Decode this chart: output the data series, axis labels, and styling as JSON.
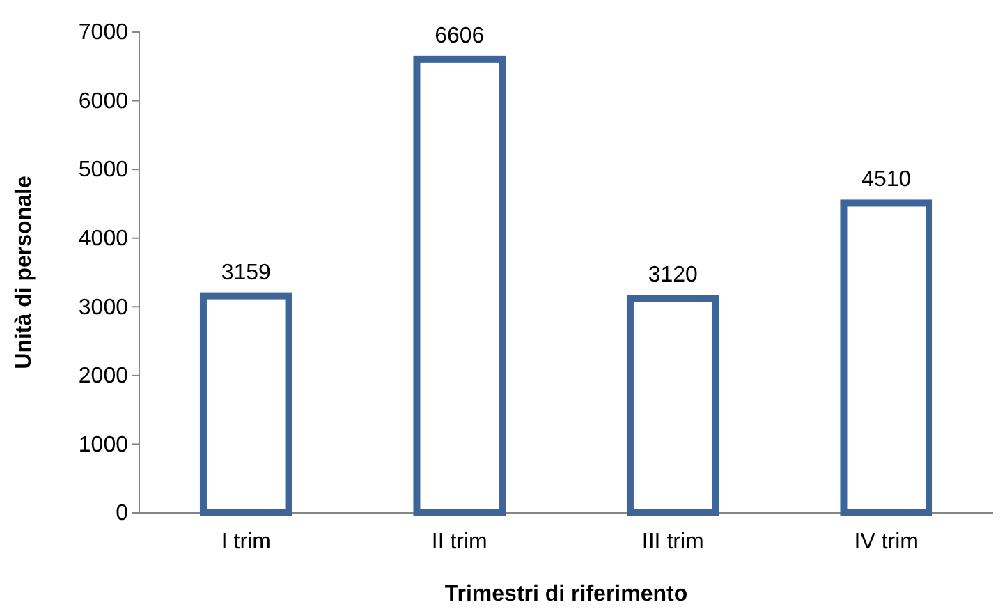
{
  "chart_data": {
    "type": "bar",
    "xlabel": "Trimestri di riferimento",
    "ylabel": "Unità di personale",
    "categories": [
      "I trim",
      "II trim",
      "III trim",
      "IV trim"
    ],
    "values": [
      3159,
      6606,
      3120,
      4510
    ],
    "color": "#3e6599",
    "ylim": [
      0,
      7000
    ],
    "yticks": [
      0,
      1000,
      2000,
      3000,
      4000,
      5000,
      6000,
      7000
    ],
    "data_labels": true,
    "grid": false
  }
}
